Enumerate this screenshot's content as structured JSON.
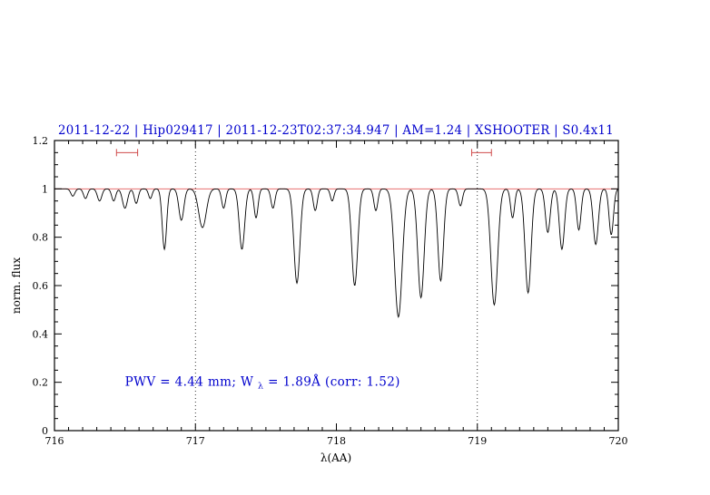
{
  "colors": {
    "title": "#0000cd",
    "annotation": "#0000cd",
    "continuum": "#e87070",
    "marker": "#d04b4b",
    "spectrum": "#000000",
    "axis": "#000000"
  },
  "chart_data": {
    "type": "line",
    "title": "2011-12-22 | Hip029417 | 2011-12-23T02:37:34.947 | AM=1.24 | XSHOOTER | S0.4x11",
    "xlabel": "λ(AA)",
    "ylabel": "norm. flux",
    "xlim": [
      716,
      720
    ],
    "ylim": [
      0,
      1.2
    ],
    "x_ticks": [
      716,
      717,
      718,
      719,
      720
    ],
    "y_ticks": [
      0,
      0.2,
      0.4,
      0.6,
      0.8,
      1,
      1.2
    ],
    "x_minor_step": 0.1,
    "y_minor_step": 0.05,
    "grid": false,
    "legend": null,
    "continuum_level": 1.0,
    "vlines_dotted": [
      717,
      719
    ],
    "band_markers": [
      {
        "x_start": 716.44,
        "x_end": 716.59,
        "y": 1.15
      },
      {
        "x_start": 718.96,
        "x_end": 719.1,
        "y": 1.15
      }
    ],
    "annotation": {
      "text_before_sub": "PWV  =  4.44  mm;  W",
      "subscript": "λ",
      "text_after_sub": "  =  1.89Å  (corr:  1.52)",
      "x": 716.5,
      "y": 0.2
    },
    "series_model": {
      "description": "Telluric absorption spectrum: flux(λ) = continuum − Σ depth·exp(−((λ−center)/width)²)",
      "sample_step": 0.004,
      "absorption_lines": [
        {
          "center": 716.13,
          "depth": 0.03,
          "width": 0.02
        },
        {
          "center": 716.22,
          "depth": 0.04,
          "width": 0.02
        },
        {
          "center": 716.32,
          "depth": 0.05,
          "width": 0.022
        },
        {
          "center": 716.42,
          "depth": 0.05,
          "width": 0.02
        },
        {
          "center": 716.5,
          "depth": 0.08,
          "width": 0.025
        },
        {
          "center": 716.58,
          "depth": 0.06,
          "width": 0.02
        },
        {
          "center": 716.68,
          "depth": 0.04,
          "width": 0.018
        },
        {
          "center": 716.78,
          "depth": 0.25,
          "width": 0.022
        },
        {
          "center": 716.9,
          "depth": 0.13,
          "width": 0.025
        },
        {
          "center": 717.05,
          "depth": 0.16,
          "width": 0.038
        },
        {
          "center": 717.2,
          "depth": 0.08,
          "width": 0.02
        },
        {
          "center": 717.33,
          "depth": 0.25,
          "width": 0.027
        },
        {
          "center": 717.43,
          "depth": 0.12,
          "width": 0.02
        },
        {
          "center": 717.55,
          "depth": 0.08,
          "width": 0.02
        },
        {
          "center": 717.72,
          "depth": 0.39,
          "width": 0.03
        },
        {
          "center": 717.85,
          "depth": 0.09,
          "width": 0.02
        },
        {
          "center": 717.97,
          "depth": 0.05,
          "width": 0.018
        },
        {
          "center": 718.13,
          "depth": 0.4,
          "width": 0.03
        },
        {
          "center": 718.28,
          "depth": 0.09,
          "width": 0.02
        },
        {
          "center": 718.44,
          "depth": 0.53,
          "width": 0.038
        },
        {
          "center": 718.6,
          "depth": 0.45,
          "width": 0.032
        },
        {
          "center": 718.74,
          "depth": 0.38,
          "width": 0.028
        },
        {
          "center": 718.88,
          "depth": 0.07,
          "width": 0.02
        },
        {
          "center": 719.12,
          "depth": 0.48,
          "width": 0.034
        },
        {
          "center": 719.25,
          "depth": 0.12,
          "width": 0.02
        },
        {
          "center": 719.36,
          "depth": 0.43,
          "width": 0.03
        },
        {
          "center": 719.5,
          "depth": 0.18,
          "width": 0.024
        },
        {
          "center": 719.6,
          "depth": 0.25,
          "width": 0.026
        },
        {
          "center": 719.72,
          "depth": 0.17,
          "width": 0.022
        },
        {
          "center": 719.84,
          "depth": 0.23,
          "width": 0.026
        },
        {
          "center": 719.95,
          "depth": 0.19,
          "width": 0.022
        }
      ]
    }
  }
}
